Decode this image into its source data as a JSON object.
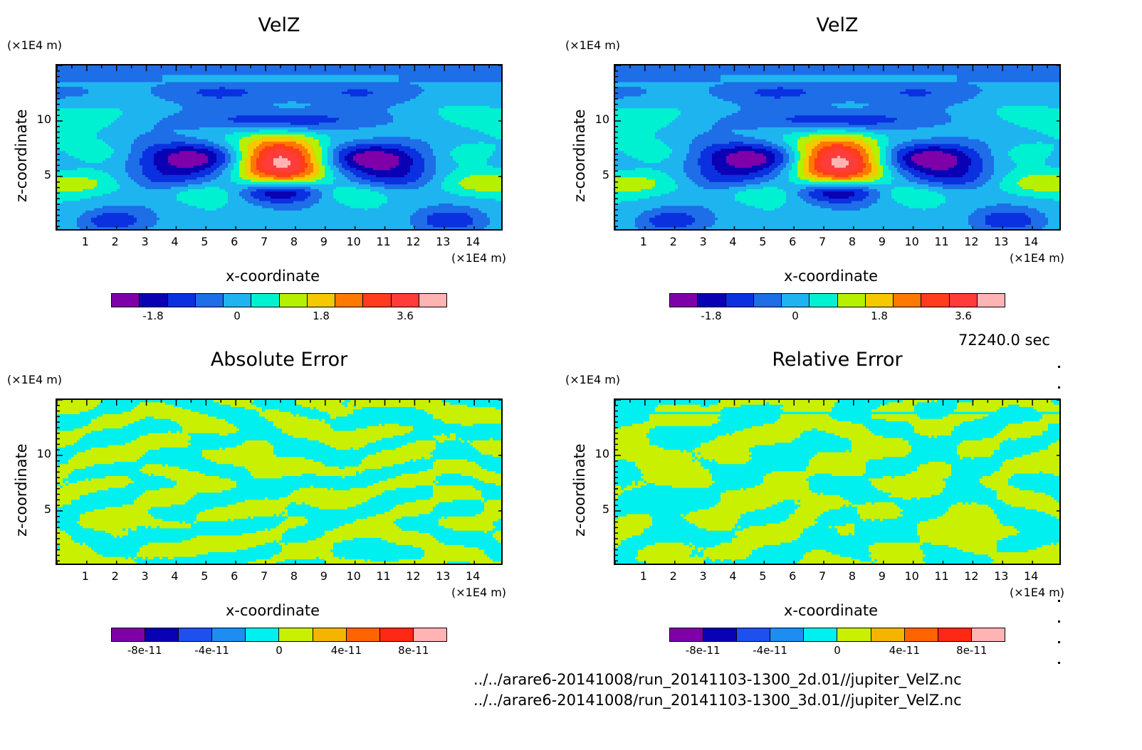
{
  "chart_data": [
    {
      "type": "heatmap",
      "title": "VelZ",
      "xlabel": "x-coordinate",
      "ylabel": "z-coordinate",
      "x_unit": "(×1E4 m)",
      "y_unit": "(×1E4 m)",
      "xticks": [
        "1",
        "2",
        "3",
        "4",
        "5",
        "6",
        "7",
        "8",
        "9",
        "10",
        "11",
        "12",
        "13",
        "14"
      ],
      "yticks": [
        "5",
        "10"
      ],
      "xlim": [
        0,
        15
      ],
      "ylim": [
        0,
        15
      ],
      "colorbar_ticks": [
        "-1.8",
        "0",
        "1.8",
        "3.6"
      ],
      "colorbar_range": [
        -2.7,
        4.5
      ]
    },
    {
      "type": "heatmap",
      "title": "VelZ",
      "xlabel": "x-coordinate",
      "ylabel": "z-coordinate",
      "x_unit": "(×1E4 m)",
      "y_unit": "(×1E4 m)",
      "xticks": [
        "1",
        "2",
        "3",
        "4",
        "5",
        "6",
        "7",
        "8",
        "9",
        "10",
        "11",
        "12",
        "13",
        "14"
      ],
      "yticks": [
        "5",
        "10"
      ],
      "xlim": [
        0,
        15
      ],
      "ylim": [
        0,
        15
      ],
      "colorbar_ticks": [
        "-1.8",
        "0",
        "1.8",
        "3.6"
      ],
      "colorbar_range": [
        -2.7,
        4.5
      ]
    },
    {
      "type": "heatmap",
      "title": "Absolute Error",
      "xlabel": "x-coordinate",
      "ylabel": "z-coordinate",
      "x_unit": "(×1E4 m)",
      "y_unit": "(×1E4 m)",
      "xticks": [
        "1",
        "2",
        "3",
        "4",
        "5",
        "6",
        "7",
        "8",
        "9",
        "10",
        "11",
        "12",
        "13",
        "14"
      ],
      "yticks": [
        "5",
        "10"
      ],
      "xlim": [
        0,
        15
      ],
      "ylim": [
        0,
        15
      ],
      "colorbar_ticks": [
        "-8e-11",
        "-4e-11",
        "0",
        "4e-11",
        "8e-11"
      ],
      "colorbar_range": [
        -1e-10,
        1e-10
      ]
    },
    {
      "type": "heatmap",
      "title": "Relative Error",
      "xlabel": "x-coordinate",
      "ylabel": "z-coordinate",
      "x_unit": "(×1E4 m)",
      "y_unit": "(×1E4 m)",
      "xticks": [
        "1",
        "2",
        "3",
        "4",
        "5",
        "6",
        "7",
        "8",
        "9",
        "10",
        "11",
        "12",
        "13",
        "14"
      ],
      "yticks": [
        "5",
        "10"
      ],
      "xlim": [
        0,
        15
      ],
      "ylim": [
        0,
        15
      ],
      "colorbar_ticks": [
        "-8e-11",
        "-4e-11",
        "0",
        "4e-11",
        "8e-11"
      ],
      "colorbar_range": [
        -1e-10,
        1e-10
      ]
    }
  ],
  "colormap": [
    "#7f00a8",
    "#0a00b4",
    "#0a30e0",
    "#1e6ee8",
    "#1eb4f0",
    "#00f0d2",
    "#b4f000",
    "#f5c800",
    "#ff7800",
    "#ff3c1e",
    "#ff3c3c",
    "#ffb4b4"
  ],
  "colormap_error": [
    "#7f00a8",
    "#0a00b4",
    "#1e50f0",
    "#1e8cf0",
    "#00f0f0",
    "#c8f000",
    "#f5b400",
    "#ff6400",
    "#ff2814",
    "#ffb4b4"
  ],
  "time_label": "72240.0 sec",
  "files": [
    "../../arare6-20141008/run_20141103-1300_2d.01//jupiter_VelZ.nc",
    "../../arare6-20141008/run_20141103-1300_3d.01//jupiter_VelZ.nc"
  ]
}
